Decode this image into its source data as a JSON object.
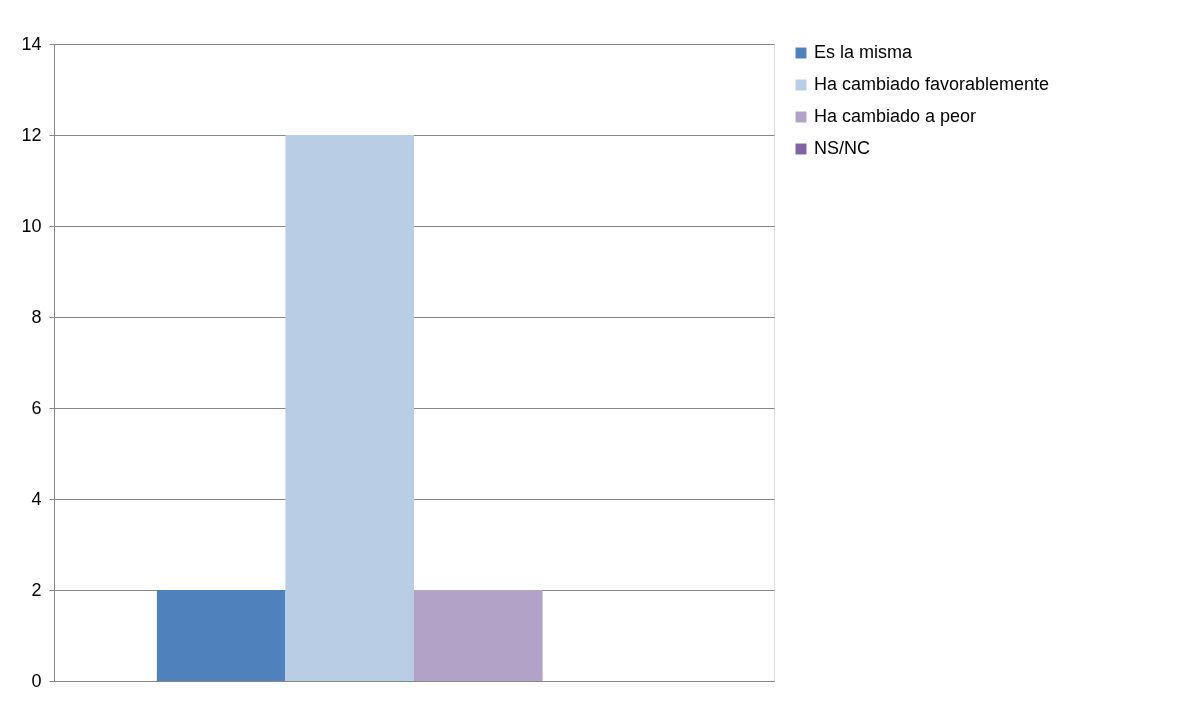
{
  "chart_data": {
    "type": "bar",
    "categories": [
      null
    ],
    "series": [
      {
        "name": "Es la misma",
        "color": "#4f81bd",
        "values": [
          2
        ]
      },
      {
        "name": "Ha cambiado favorablemente",
        "color": "#b9cde5",
        "values": [
          12
        ]
      },
      {
        "name": "Ha cambiado a peor",
        "color": "#b3a2c7",
        "values": [
          2
        ]
      },
      {
        "name": "NS/NC",
        "color": "#8064a2",
        "values": [
          0
        ]
      }
    ],
    "ylim": [
      0,
      14
    ],
    "yticks": [
      0,
      2,
      4,
      6,
      8,
      10,
      12,
      14
    ],
    "grid": "y",
    "legend": "right",
    "tick_labels": "y"
  }
}
